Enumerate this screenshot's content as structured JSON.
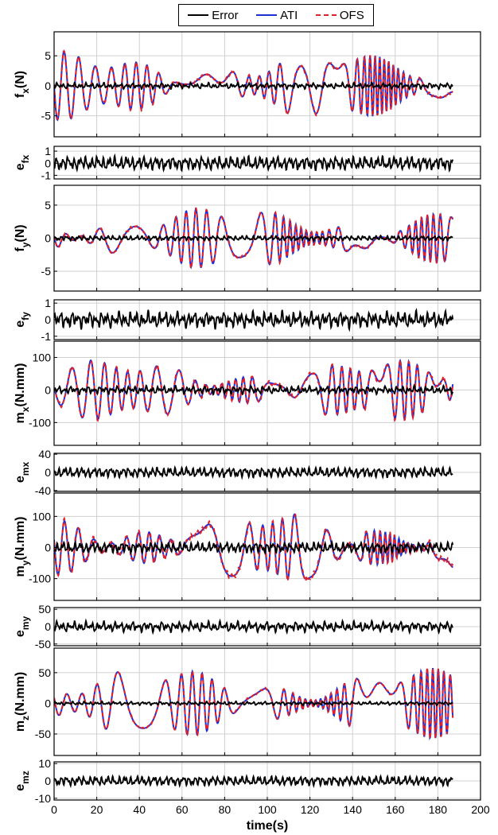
{
  "colors": {
    "error": "#000000",
    "ati": "#1f2fd6",
    "ofs": "#e0202a",
    "grid": "#d0d0d0",
    "frame": "#000000"
  },
  "legend": {
    "placement": "top",
    "entries": [
      {
        "label": "Error",
        "style": "solid",
        "color": "#000000"
      },
      {
        "label": "ATI",
        "style": "solid",
        "color": "#1f2fd6"
      },
      {
        "label": "OFS",
        "style": "dashed",
        "color": "#e0202a"
      }
    ]
  },
  "chart_data": {
    "type": "line",
    "xlabel": "time(s)",
    "xlim": [
      0,
      200
    ],
    "xticks": [
      0,
      20,
      40,
      60,
      80,
      100,
      120,
      140,
      160,
      180,
      200
    ],
    "duration_s": 187,
    "grid": true,
    "panels": [
      {
        "id": "fx",
        "ylabel_main": "f",
        "ylabel_sub": "x",
        "ylabel_suffix": "(N)",
        "kind": "main",
        "ylim": [
          -8.5,
          9
        ],
        "yticks": [
          -5,
          0,
          5
        ],
        "amplitude": 5.5,
        "error_amplitude": 0.5,
        "series": [
          "Error",
          "ATI",
          "OFS"
        ]
      },
      {
        "id": "efx",
        "ylabel_main": "e",
        "ylabel_sub": "fx",
        "ylabel_suffix": "",
        "kind": "error",
        "ylim": [
          -1.3,
          1.4
        ],
        "yticks": [
          -1,
          0,
          1
        ],
        "amplitude": 0.6,
        "series": [
          "Error"
        ]
      },
      {
        "id": "fy",
        "ylabel_main": "f",
        "ylabel_sub": "y",
        "ylabel_suffix": "(N)",
        "kind": "main",
        "ylim": [
          -8,
          8
        ],
        "yticks": [
          -5,
          0,
          5
        ],
        "amplitude": 4.5,
        "error_amplitude": 0.4,
        "series": [
          "Error",
          "ATI",
          "OFS"
        ]
      },
      {
        "id": "efy",
        "ylabel_main": "e",
        "ylabel_sub": "fy",
        "ylabel_suffix": "",
        "kind": "error",
        "ylim": [
          -1.2,
          1.2
        ],
        "yticks": [
          -1,
          0,
          1
        ],
        "amplitude": 0.5,
        "series": [
          "Error"
        ]
      },
      {
        "id": "mx",
        "ylabel_main": "m",
        "ylabel_sub": "x",
        "ylabel_suffix": "(N.mm)",
        "kind": "main",
        "ylim": [
          -170,
          150
        ],
        "yticks": [
          -100,
          0,
          100
        ],
        "amplitude": 90,
        "error_amplitude": 12,
        "series": [
          "Error",
          "ATI",
          "OFS"
        ]
      },
      {
        "id": "emx",
        "ylabel_main": "e",
        "ylabel_sub": "mx",
        "ylabel_suffix": "",
        "kind": "error",
        "ylim": [
          -42,
          42
        ],
        "yticks": [
          -40,
          0,
          40
        ],
        "amplitude": 12,
        "series": [
          "Error"
        ]
      },
      {
        "id": "my",
        "ylabel_main": "m",
        "ylabel_sub": "y",
        "ylabel_suffix": "(N.mm)",
        "kind": "main",
        "ylim": [
          -170,
          175
        ],
        "yticks": [
          -100,
          0,
          100
        ],
        "amplitude": 110,
        "error_amplitude": 18,
        "series": [
          "Error",
          "ATI",
          "OFS"
        ]
      },
      {
        "id": "emy",
        "ylabel_main": "e",
        "ylabel_sub": "my",
        "ylabel_suffix": "",
        "kind": "error",
        "ylim": [
          -55,
          55
        ],
        "yticks": [
          -50,
          0,
          50
        ],
        "amplitude": 15,
        "series": [
          "Error"
        ]
      },
      {
        "id": "mz",
        "ylabel_main": "m",
        "ylabel_sub": "z",
        "ylabel_suffix": "(N.mm)",
        "kind": "main",
        "ylim": [
          -85,
          90
        ],
        "yticks": [
          -50,
          0,
          50
        ],
        "amplitude": 55,
        "error_amplitude": 3,
        "series": [
          "Error",
          "ATI",
          "OFS"
        ]
      },
      {
        "id": "emz",
        "ylabel_main": "e",
        "ylabel_sub": "mz",
        "ylabel_suffix": "",
        "kind": "error",
        "ylim": [
          -11,
          11
        ],
        "yticks": [
          -10,
          0,
          10
        ],
        "amplitude": 3,
        "series": [
          "Error"
        ]
      }
    ]
  }
}
